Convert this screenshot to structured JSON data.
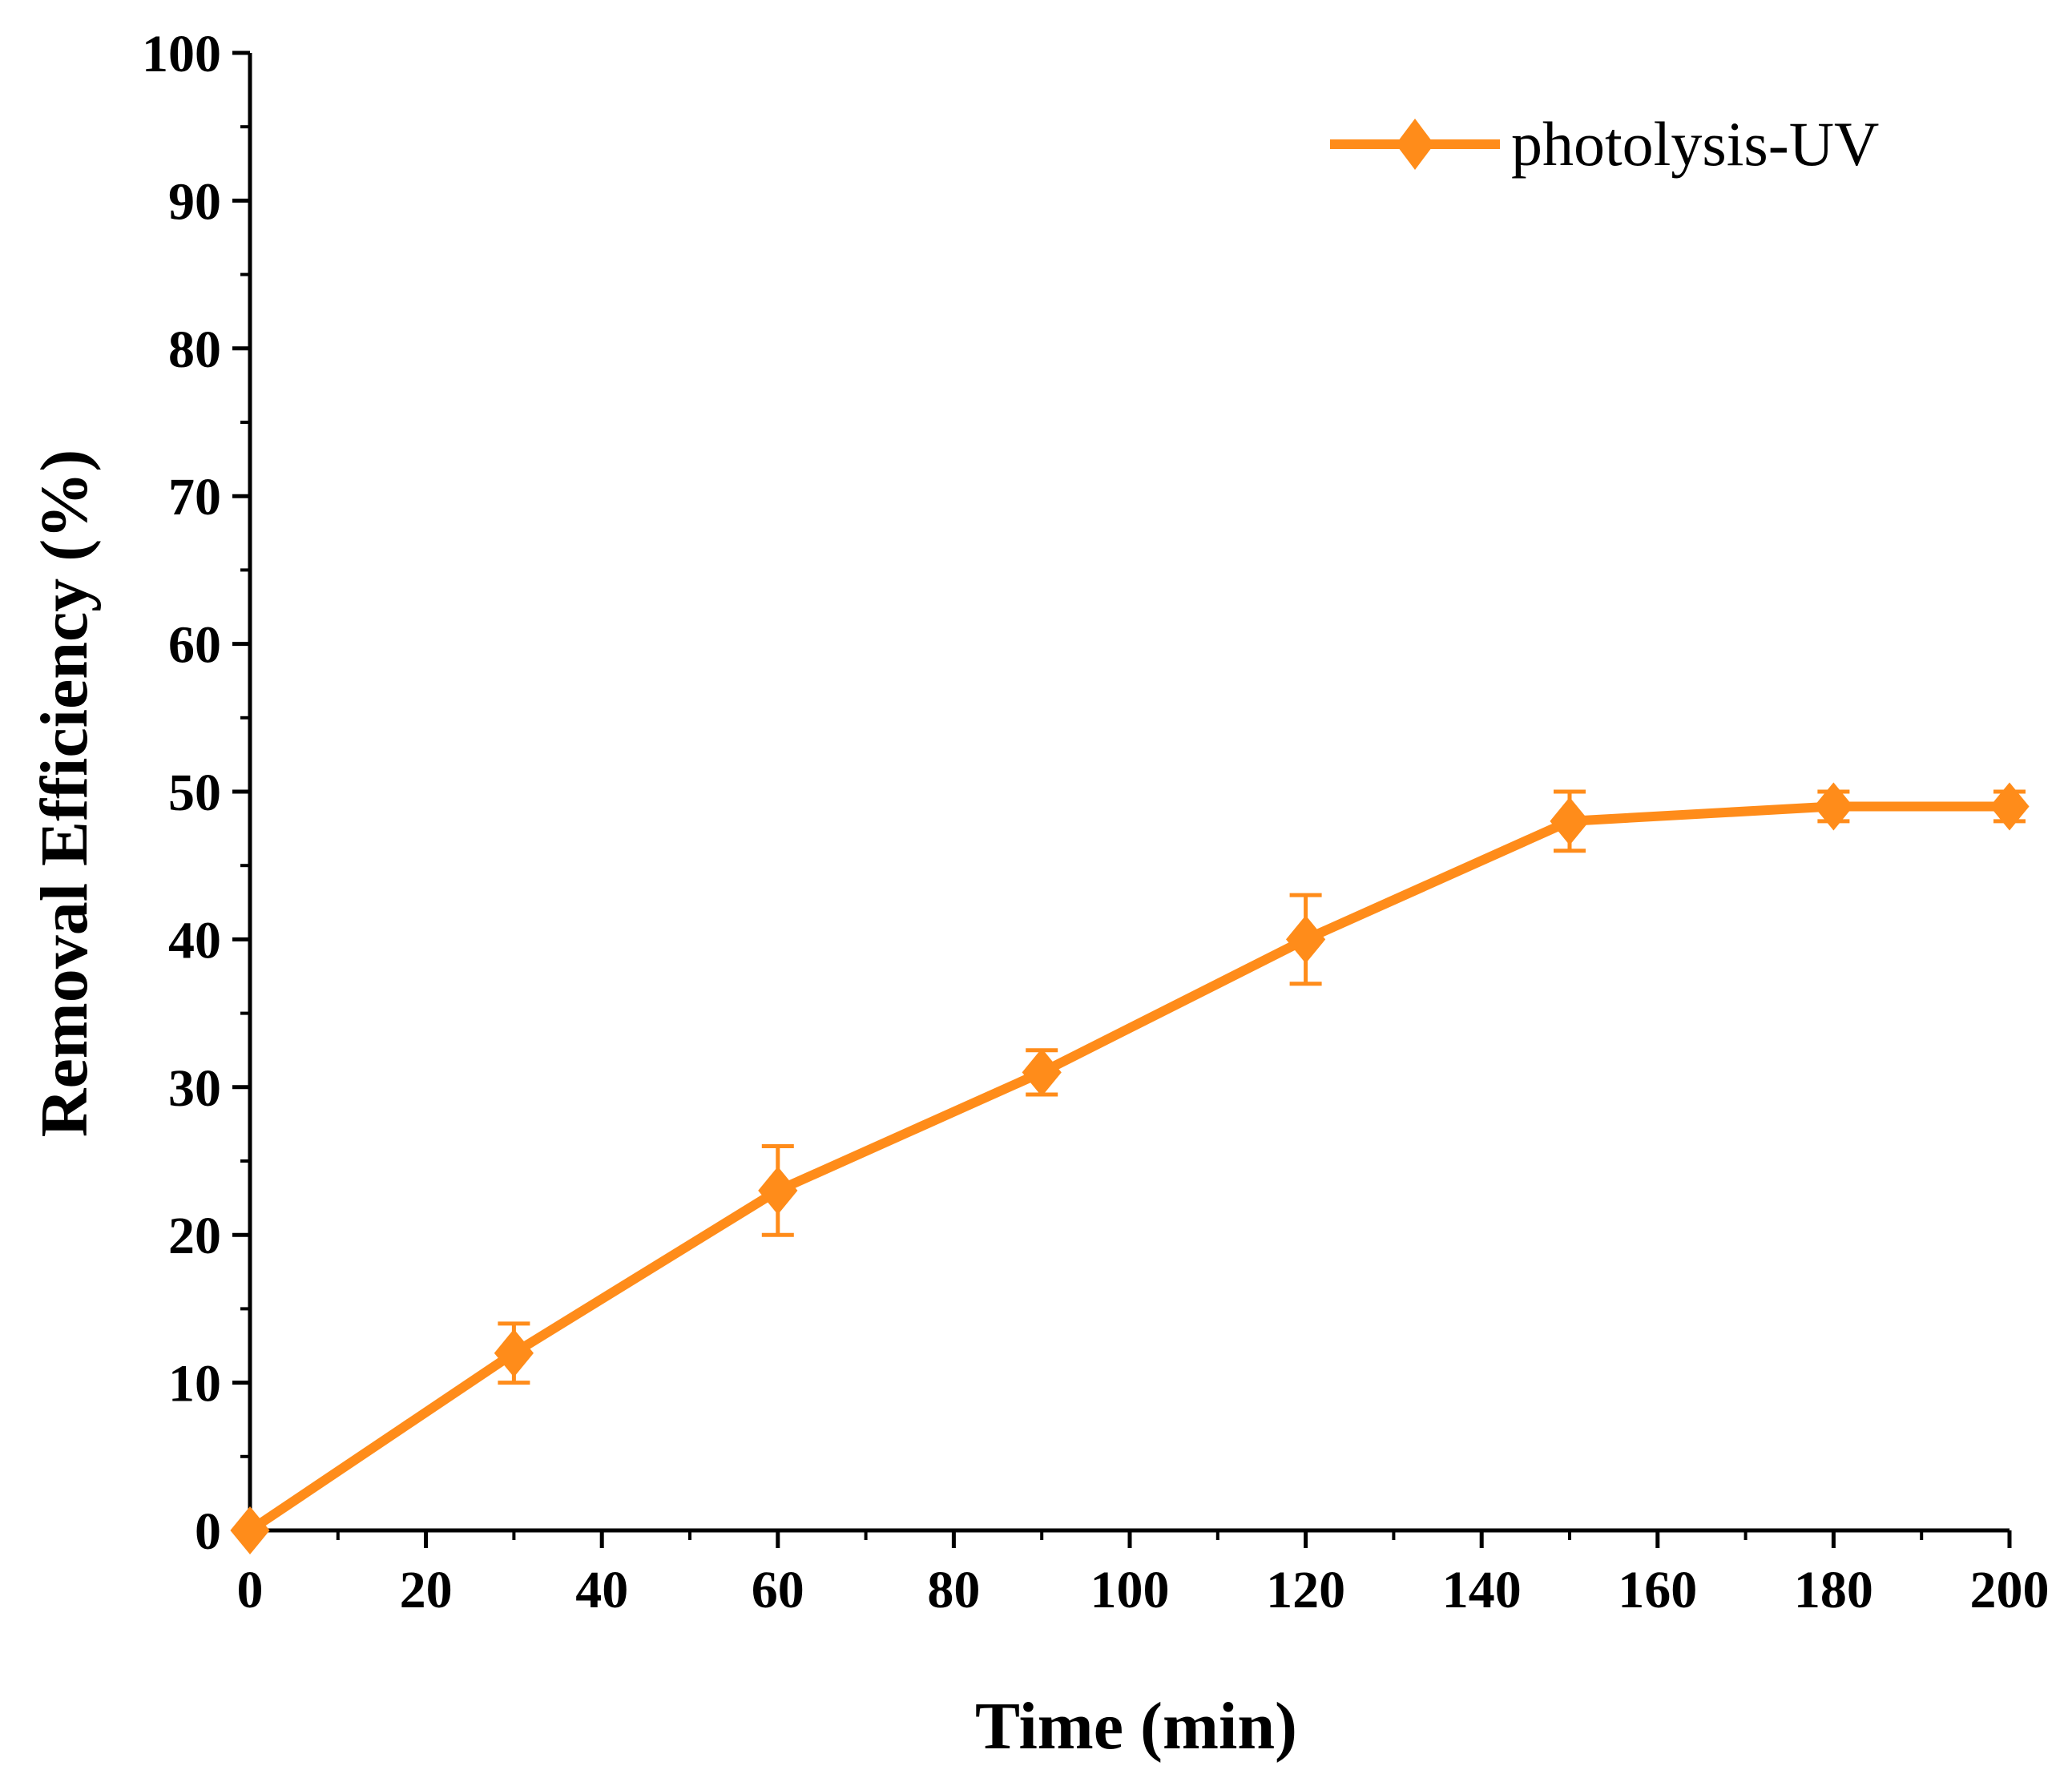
{
  "chart_data": {
    "type": "line",
    "title": "",
    "xlabel": "Time (min)",
    "ylabel": "Removal Efficiency (%)",
    "xlim": [
      0,
      200
    ],
    "ylim": [
      0,
      100
    ],
    "x_ticks": [
      0,
      20,
      40,
      60,
      80,
      100,
      120,
      140,
      160,
      180,
      200
    ],
    "y_ticks": [
      0,
      10,
      20,
      30,
      40,
      50,
      60,
      70,
      80,
      90,
      100
    ],
    "x_tick_labels": [
      "0",
      "20",
      "40",
      "60",
      "80",
      "100",
      "120",
      "140",
      "160",
      "180",
      "200"
    ],
    "y_tick_labels": [
      "0",
      "10",
      "20",
      "30",
      "40",
      "50",
      "60",
      "70",
      "80",
      "90",
      "100"
    ],
    "grid": false,
    "legend_position": "top-right",
    "series": [
      {
        "name": "photolysis-UV",
        "color": "#ff8c1a",
        "marker": "diamond",
        "x": [
          0,
          30,
          60,
          90,
          120,
          150,
          180,
          200
        ],
        "values": [
          0,
          12,
          23,
          31,
          40,
          48,
          49,
          49
        ],
        "error": [
          0,
          2,
          3,
          1.5,
          3,
          2,
          1,
          1
        ]
      }
    ]
  }
}
